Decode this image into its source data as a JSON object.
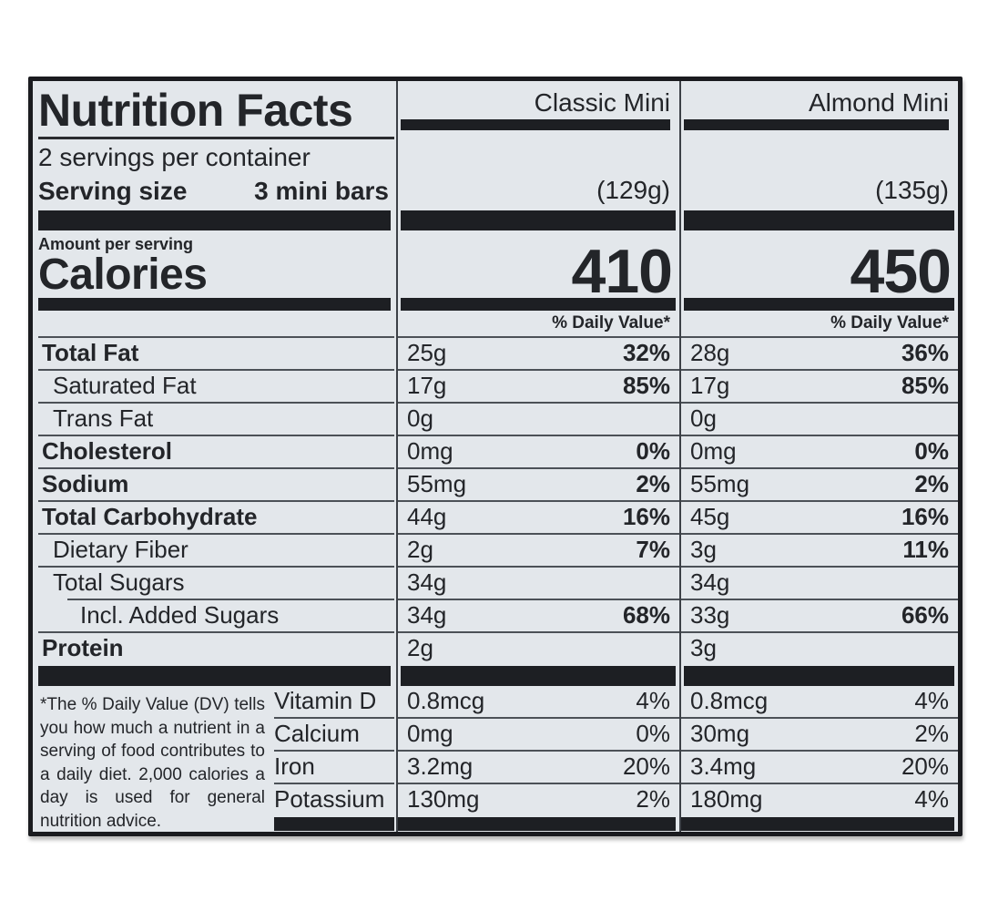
{
  "header": {
    "title": "Nutrition Facts",
    "servings_per_container": "2 servings per container",
    "serving_size_label": "Serving size",
    "serving_size_value": "3 mini bars",
    "amount_per_serving": "Amount per serving",
    "calories_label": "Calories"
  },
  "columns": [
    {
      "name": "Classic Mini",
      "weight": "(129g)",
      "calories": "410",
      "dv_header": "% Daily Value*"
    },
    {
      "name": "Almond Mini",
      "weight": "(135g)",
      "calories": "450",
      "dv_header": "% Daily Value*"
    }
  ],
  "nutrients": [
    {
      "label": "Total Fat",
      "bold": true,
      "indent": 0,
      "cols": [
        {
          "amount": "25g",
          "dv": "32%"
        },
        {
          "amount": "28g",
          "dv": "36%"
        }
      ]
    },
    {
      "label": "Saturated Fat",
      "bold": false,
      "indent": 1,
      "cols": [
        {
          "amount": "17g",
          "dv": "85%"
        },
        {
          "amount": "17g",
          "dv": "85%"
        }
      ]
    },
    {
      "label": "Trans Fat",
      "bold": false,
      "indent": 1,
      "cols": [
        {
          "amount": "0g",
          "dv": ""
        },
        {
          "amount": "0g",
          "dv": ""
        }
      ]
    },
    {
      "label": "Cholesterol",
      "bold": true,
      "indent": 0,
      "cols": [
        {
          "amount": "0mg",
          "dv": "0%"
        },
        {
          "amount": "0mg",
          "dv": "0%"
        }
      ]
    },
    {
      "label": "Sodium",
      "bold": true,
      "indent": 0,
      "cols": [
        {
          "amount": "55mg",
          "dv": "2%"
        },
        {
          "amount": "55mg",
          "dv": "2%"
        }
      ]
    },
    {
      "label": "Total Carbohydrate",
      "bold": true,
      "indent": 0,
      "cols": [
        {
          "amount": "44g",
          "dv": "16%"
        },
        {
          "amount": "45g",
          "dv": "16%"
        }
      ]
    },
    {
      "label": "Dietary Fiber",
      "bold": false,
      "indent": 1,
      "cols": [
        {
          "amount": "2g",
          "dv": "7%"
        },
        {
          "amount": "3g",
          "dv": "11%"
        }
      ]
    },
    {
      "label": "Total Sugars",
      "bold": false,
      "indent": 1,
      "cols": [
        {
          "amount": "34g",
          "dv": ""
        },
        {
          "amount": "34g",
          "dv": ""
        }
      ]
    },
    {
      "label": "Incl. Added Sugars",
      "bold": false,
      "indent": 2,
      "cols": [
        {
          "amount": "34g",
          "dv": "68%"
        },
        {
          "amount": "33g",
          "dv": "66%"
        }
      ]
    },
    {
      "label": "Protein",
      "bold": true,
      "indent": 0,
      "cols": [
        {
          "amount": "2g",
          "dv": ""
        },
        {
          "amount": "3g",
          "dv": ""
        }
      ]
    }
  ],
  "vitamins": [
    {
      "label": "Vitamin D",
      "cols": [
        {
          "amount": "0.8mcg",
          "dv": "4%"
        },
        {
          "amount": "0.8mcg",
          "dv": "4%"
        }
      ]
    },
    {
      "label": "Calcium",
      "cols": [
        {
          "amount": "0mg",
          "dv": "0%"
        },
        {
          "amount": "30mg",
          "dv": "2%"
        }
      ]
    },
    {
      "label": "Iron",
      "cols": [
        {
          "amount": "3.2mg",
          "dv": "20%"
        },
        {
          "amount": "3.4mg",
          "dv": "20%"
        }
      ]
    },
    {
      "label": "Potassium",
      "cols": [
        {
          "amount": "130mg",
          "dv": "2%"
        },
        {
          "amount": "180mg",
          "dv": "4%"
        }
      ]
    }
  ],
  "footnote": "*The % Daily Value (DV) tells you how much a nutrient in a serving of food contributes to a daily diet. 2,000 calories a day is used for general nutrition advice.",
  "colors": {
    "label_background": "#e3e7eb",
    "ink": "#232529",
    "bar": "#1d1f23"
  }
}
